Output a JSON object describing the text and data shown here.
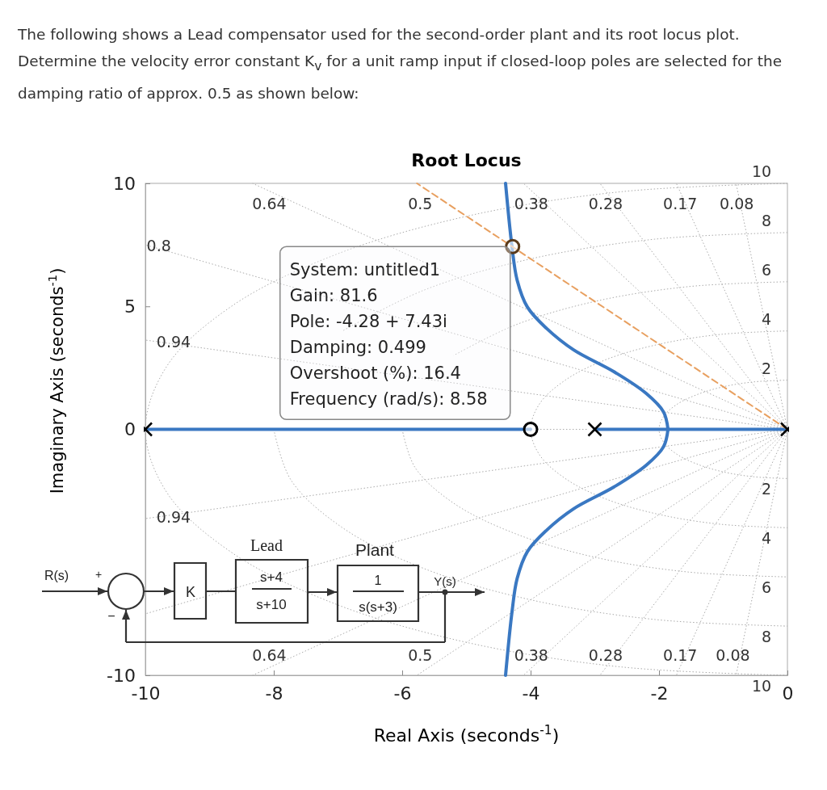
{
  "chart_data": {
    "type": "line",
    "title": "Root Locus",
    "xlabel": "Real Axis (seconds$^{-1}$)",
    "ylabel": "Imaginary Axis (seconds$^{-1}$)",
    "xlim": [
      -10,
      0
    ],
    "ylim": [
      -10,
      10
    ],
    "xticks": [
      -10,
      -8,
      -6,
      -4,
      -2,
      0
    ],
    "yticks": [
      -10,
      0,
      5,
      10
    ],
    "line_style": "solid",
    "marker": "none",
    "series": [
      {
        "color": "#aaaaaa",
        "line_style": "dotted",
        "x": [
          -3.9,
          -3.1
        ],
        "values": [
          0,
          0
        ]
      },
      {
        "color": "#aaaaaa",
        "line_style": "dotted",
        "x": [
          0,
          -10
        ],
        "values": [
          0,
          3.63
        ]
      },
      {
        "color": "#aaaaaa",
        "line_style": "dotted",
        "x": [
          0,
          -10
        ],
        "values": [
          0,
          -3.63
        ]
      },
      {
        "color": "#aaaaaa",
        "line_style": "dotted",
        "x": [
          0,
          -10
        ],
        "values": [
          0,
          7.5
        ]
      },
      {
        "color": "#aaaaaa",
        "line_style": "dotted",
        "x": [
          0,
          -10
        ],
        "values": [
          0,
          -7.5
        ]
      },
      {
        "color": "#aaaaaa",
        "line_style": "dotted",
        "x": [
          0,
          -8.33
        ],
        "values": [
          0,
          10
        ]
      },
      {
        "color": "#aaaaaa",
        "line_style": "dotted",
        "x": [
          0,
          -8.33
        ],
        "values": [
          0,
          -10
        ]
      },
      {
        "color": "#aaaaaa",
        "line_style": "dotted",
        "x": [
          0,
          -5.77
        ],
        "values": [
          0,
          -10
        ]
      },
      {
        "color": "#aaaaaa",
        "line_style": "dotted",
        "x": [
          0,
          -4.11
        ],
        "values": [
          0,
          10
        ]
      },
      {
        "color": "#aaaaaa",
        "line_style": "dotted",
        "x": [
          0,
          -4.11
        ],
        "values": [
          0,
          -10
        ]
      },
      {
        "color": "#aaaaaa",
        "line_style": "dotted",
        "x": [
          0,
          -2.92
        ],
        "values": [
          0,
          10
        ]
      },
      {
        "color": "#aaaaaa",
        "line_style": "dotted",
        "x": [
          0,
          -2.92
        ],
        "values": [
          0,
          -10
        ]
      },
      {
        "color": "#aaaaaa",
        "line_style": "dotted",
        "x": [
          0,
          -1.73
        ],
        "values": [
          0,
          10
        ]
      },
      {
        "color": "#aaaaaa",
        "line_style": "dotted",
        "x": [
          0,
          -1.73
        ],
        "values": [
          0,
          -10
        ]
      },
      {
        "color": "#aaaaaa",
        "line_style": "dotted",
        "x": [
          0,
          -0.8
        ],
        "values": [
          0,
          10
        ]
      },
      {
        "color": "#aaaaaa",
        "line_style": "dotted",
        "x": [
          0,
          -0.8
        ],
        "values": [
          0,
          -10
        ]
      },
      {
        "color": "#aaaaaa",
        "line_style": "dotted",
        "x": [
          0,
          -0.52,
          -1,
          -1.41,
          -1.73,
          -1.93,
          -2,
          -1.93,
          -1.73,
          -1.41,
          -1,
          -0.52,
          0
        ],
        "values": [
          2,
          1.93,
          1.73,
          1.41,
          1,
          0.52,
          0,
          -0.52,
          -1,
          -1.41,
          -1.73,
          -1.93,
          -2
        ]
      },
      {
        "color": "#aaaaaa",
        "line_style": "dotted",
        "x": [
          0,
          -1.04,
          -2,
          -2.83,
          -3.46,
          -3.86,
          -4,
          -3.86,
          -3.46,
          -2.83,
          -2,
          -1.04,
          0
        ],
        "values": [
          4,
          3.86,
          3.46,
          2.83,
          2,
          1.04,
          0,
          -1.04,
          -2,
          -2.83,
          -3.46,
          -3.86,
          -4
        ]
      },
      {
        "color": "#aaaaaa",
        "line_style": "dotted",
        "x": [
          0,
          -1.55,
          -3,
          -4.24,
          -5.2,
          -5.8,
          -6,
          -5.8,
          -5.2,
          -4.24,
          -3,
          -1.55,
          0
        ],
        "values": [
          6,
          5.8,
          5.2,
          4.24,
          3,
          null,
          0,
          -1.55,
          -3,
          -4.24,
          -5.2,
          -5.8,
          -6
        ]
      },
      {
        "color": "#aaaaaa",
        "line_style": "dotted",
        "x": [
          0,
          -2.07,
          -4,
          -5.66,
          -6.93,
          -7.73,
          -8,
          -7.73,
          -6.93,
          -5.66,
          -4,
          -2.07,
          0
        ],
        "values": [
          8,
          7.73,
          6.93,
          5.66,
          4,
          null,
          0,
          -2.07,
          -4,
          -5.66,
          -6.93,
          -7.73,
          -8
        ]
      },
      {
        "color": "#aaaaaa",
        "line_style": "dotted",
        "x": [
          0,
          -2.59,
          -5,
          -7.07,
          -8.66,
          -9.66,
          -10,
          -9.66,
          -8.66,
          -7.07,
          -5,
          -2.59,
          0
        ],
        "values": [
          10,
          9.66,
          8.66,
          7.07,
          5,
          2.59,
          0,
          -2.59,
          -5,
          -7.07,
          -8.66,
          -9.66,
          -10
        ]
      },
      {
        "color": "#3a78c2",
        "x": [
          -10,
          -4,
          -3.5,
          -3,
          0
        ],
        "values": [
          0,
          0,
          null,
          0,
          0
        ]
      },
      {
        "color": "#3a78c2",
        "x": [
          -1.86,
          -1.93,
          -2.2,
          -2.7,
          -3.33,
          -3.75,
          -4.05,
          -4.21,
          -4.29,
          -4.39
        ],
        "values": [
          0,
          0.71,
          1.46,
          2.34,
          3.23,
          4.1,
          4.97,
          6.07,
          7.43,
          10
        ]
      },
      {
        "color": "#3a78c2",
        "x": [
          -1.86,
          -1.93,
          -2.2,
          -2.7,
          -3.33,
          -3.75,
          -4.05,
          -4.21,
          -4.29,
          -4.39
        ],
        "values": [
          0,
          -0.71,
          -1.46,
          -2.34,
          -3.23,
          -4.1,
          -4.97,
          -6.07,
          -7.43,
          -10
        ]
      },
      {
        "color": "#e8a060",
        "line_style": "dashed",
        "x": [
          0,
          -5.77
        ],
        "values": [
          0,
          10
        ]
      },
      {
        "type": "scatter",
        "color": "#000000",
        "marker": "cross",
        "x": [
          -10,
          -3,
          0
        ],
        "values": [
          0,
          0,
          0
        ]
      },
      {
        "type": "scatter",
        "color": "#000000",
        "marker": "circle",
        "x": [
          -4
        ],
        "values": [
          0
        ]
      },
      {
        "type": "scatter",
        "color": "#5a3a1a",
        "marker": "circle",
        "x": [
          -4.28
        ],
        "values": [
          7.43
        ]
      }
    ],
    "annotations": [
      "The following shows a Lead compensator used for the second-order plant and its root locus plot. Determine the velocity error constant K$_{v}$ for a unit ramp input if closed-loop poles are selected for the damping ratio of approx. 0.5 as shown below:",
      "System: untitled1\nGain: 81.6\nPole: -4.28 + 7.43i\nDamping: 0.499\nOvershoot (%): 16.4\nFrequency (rad/s): 8.58",
      "R(s)",
      "+",
      "−",
      "K",
      "Lead",
      "s+4",
      "s+10",
      "Plant",
      "1",
      "s(s+3)",
      "Y(s)",
      "0.64",
      "0.5",
      "0.38",
      "0.28",
      "0.17",
      "0.08",
      "0.8",
      "0.94",
      "0.94",
      "0.64",
      "0.5",
      "0.38",
      "0.28",
      "0.17",
      "0.08",
      "10",
      "8",
      "6",
      "4",
      "2",
      "2",
      "4",
      "6",
      "8",
      "10"
    ]
  }
}
